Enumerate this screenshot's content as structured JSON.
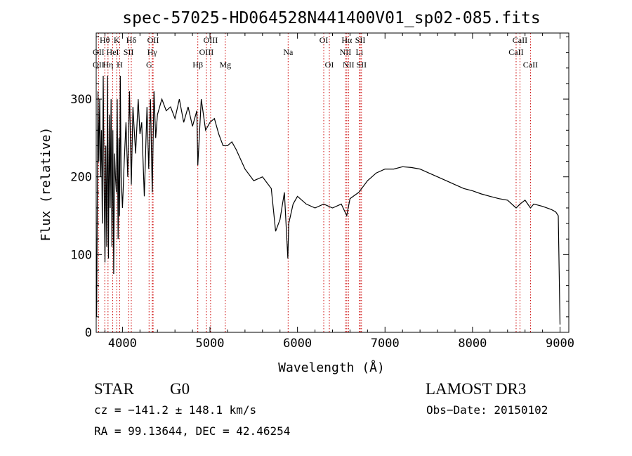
{
  "chart_data": {
    "type": "line",
    "title": "spec-57025-HD064528N441400V01_sp02-085.fits",
    "xlabel": "Wavelength (Å)",
    "ylabel": "Flux (relative)",
    "xlim": [
      3700,
      9100
    ],
    "ylim": [
      0,
      385
    ],
    "grid": false,
    "x_ticks": [
      4000,
      5000,
      6000,
      7000,
      8000,
      9000
    ],
    "y_ticks": [
      0,
      100,
      200,
      300
    ],
    "series": [
      {
        "name": "flux",
        "x": [
          3700,
          3705,
          3712,
          3720,
          3730,
          3740,
          3750,
          3760,
          3770,
          3780,
          3790,
          3800,
          3810,
          3820,
          3830,
          3840,
          3850,
          3860,
          3870,
          3880,
          3890,
          3900,
          3910,
          3920,
          3930,
          3940,
          3950,
          3960,
          3968,
          3975,
          3985,
          4000,
          4020,
          4040,
          4060,
          4080,
          4101,
          4120,
          4150,
          4180,
          4200,
          4220,
          4250,
          4280,
          4300,
          4320,
          4340,
          4360,
          4380,
          4400,
          4450,
          4500,
          4550,
          4600,
          4650,
          4700,
          4750,
          4800,
          4850,
          4861,
          4900,
          4950,
          5000,
          5050,
          5100,
          5150,
          5200,
          5250,
          5300,
          5400,
          5500,
          5600,
          5700,
          5750,
          5800,
          5850,
          5890,
          5900,
          5950,
          6000,
          6100,
          6200,
          6300,
          6400,
          6500,
          6563,
          6600,
          6700,
          6800,
          6900,
          7000,
          7100,
          7200,
          7300,
          7400,
          7500,
          7600,
          7700,
          7800,
          7900,
          8000,
          8100,
          8200,
          8300,
          8400,
          8498,
          8542,
          8600,
          8662,
          8700,
          8800,
          8900,
          8950,
          8980,
          9000
        ],
        "values": [
          60,
          20,
          160,
          310,
          220,
          300,
          200,
          260,
          140,
          330,
          200,
          90,
          240,
          110,
          330,
          95,
          280,
          160,
          300,
          110,
          260,
          75,
          230,
          200,
          180,
          300,
          120,
          250,
          150,
          330,
          200,
          160,
          220,
          270,
          200,
          310,
          190,
          290,
          230,
          300,
          255,
          270,
          175,
          290,
          210,
          300,
          180,
          310,
          250,
          280,
          300,
          285,
          290,
          275,
          300,
          270,
          290,
          265,
          285,
          215,
          300,
          260,
          270,
          275,
          255,
          240,
          240,
          245,
          235,
          210,
          195,
          200,
          185,
          130,
          145,
          180,
          95,
          140,
          165,
          175,
          165,
          160,
          165,
          160,
          165,
          150,
          172,
          180,
          195,
          205,
          210,
          210,
          213,
          212,
          210,
          205,
          200,
          195,
          190,
          185,
          182,
          178,
          175,
          172,
          170,
          160,
          165,
          170,
          160,
          165,
          162,
          158,
          155,
          150,
          10
        ]
      }
    ],
    "line_labels": [
      {
        "label": "Hθ",
        "x": 3798,
        "row": 1
      },
      {
        "label": "K",
        "x": 3934,
        "row": 1
      },
      {
        "label": "Hδ",
        "x": 4101,
        "row": 1
      },
      {
        "label": "OII",
        "x": 4350,
        "row": 1
      },
      {
        "label": "OIII",
        "x": 5007,
        "row": 1
      },
      {
        "label": "OI",
        "x": 6300,
        "row": 1
      },
      {
        "label": "Hα",
        "x": 6563,
        "row": 1
      },
      {
        "label": "SII",
        "x": 6717,
        "row": 1
      },
      {
        "label": "CaII",
        "x": 8542,
        "row": 1
      },
      {
        "label": "OII",
        "x": 3727,
        "row": 2
      },
      {
        "label": "HeI",
        "x": 3889,
        "row": 2
      },
      {
        "label": "SII",
        "x": 4070,
        "row": 2
      },
      {
        "label": "Hγ",
        "x": 4340,
        "row": 2
      },
      {
        "label": "OIII",
        "x": 4959,
        "row": 2
      },
      {
        "label": "Na",
        "x": 5893,
        "row": 2
      },
      {
        "label": "NII",
        "x": 6548,
        "row": 2
      },
      {
        "label": "Li",
        "x": 6708,
        "row": 2
      },
      {
        "label": "CaII",
        "x": 8498,
        "row": 2
      },
      {
        "label": "OII",
        "x": 3727,
        "row": 3
      },
      {
        "label": "Hη",
        "x": 3835,
        "row": 3
      },
      {
        "label": "H",
        "x": 3968,
        "row": 3
      },
      {
        "label": "G",
        "x": 4304,
        "row": 3
      },
      {
        "label": "Hβ",
        "x": 4861,
        "row": 3
      },
      {
        "label": "Mg",
        "x": 5175,
        "row": 3
      },
      {
        "label": "OI",
        "x": 6364,
        "row": 3
      },
      {
        "label": "NII",
        "x": 6583,
        "row": 3
      },
      {
        "label": "SII",
        "x": 6731,
        "row": 3
      },
      {
        "label": "CaII",
        "x": 8662,
        "row": 3
      }
    ]
  },
  "info": {
    "object_class": "STAR",
    "subclass": "G0",
    "survey": "LAMOST DR3",
    "redshift": "cz = −141.2 ± 148.1 km/s",
    "obs_date": "Obs−Date: 20150102",
    "coords": "RA =  99.13644, DEC =  42.46254"
  }
}
